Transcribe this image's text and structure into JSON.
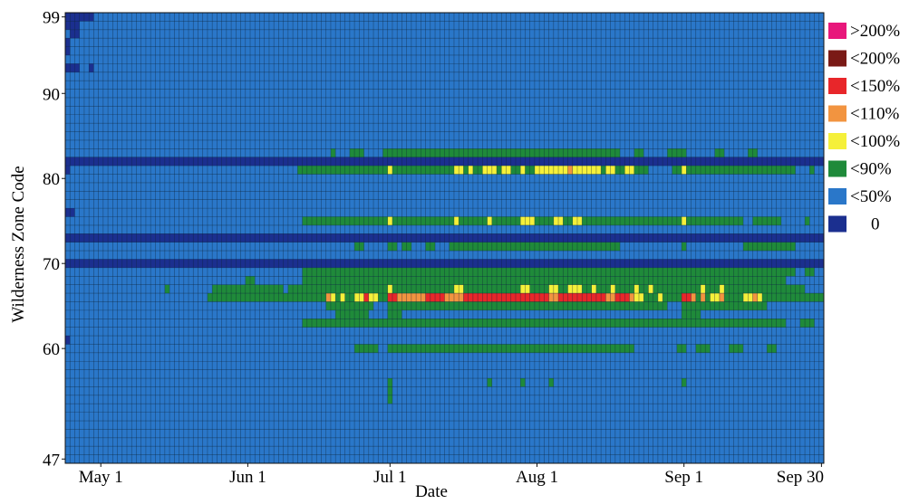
{
  "chart_data": {
    "type": "heatmap",
    "title": "",
    "xlabel": "Date",
    "ylabel": "Wilderness Zone Code",
    "x_start": "Apr 24",
    "x_end": "Oct 1",
    "y_min": 47,
    "y_max": 99,
    "x_ticks": [
      {
        "label": "May 1",
        "date": "May 1"
      },
      {
        "label": "Jun 1",
        "date": "Jun 1"
      },
      {
        "label": "Jul 1",
        "date": "Jul 1"
      },
      {
        "label": "Aug 1",
        "date": "Aug 1"
      },
      {
        "label": "Sep 1",
        "date": "Sep 1"
      },
      {
        "label": "Sep 30",
        "date": "Sep 30"
      }
    ],
    "y_ticks": [
      99,
      90,
      80,
      70,
      60,
      47
    ],
    "legend": {
      "placement": "right",
      "entries": [
        {
          "label": ">200%",
          "color": "#e8177b"
        },
        {
          "label": "<200%",
          "color": "#7a1a16"
        },
        {
          "label": "<150%",
          "color": "#e8262a"
        },
        {
          "label": "<110%",
          "color": "#f29440"
        },
        {
          "label": "<100%",
          "color": "#f5f03a"
        },
        {
          "label": "<90%",
          "color": "#1f8a3a"
        },
        {
          "label": "<50%",
          "color": "#2a77c9"
        },
        {
          "label": "0",
          "color": "#1b2f8f"
        }
      ]
    },
    "background_category": "<50%",
    "zero_rows": [
      {
        "zone": 82,
        "from": "Apr 24",
        "to": "Oct 1"
      },
      {
        "zone": 73,
        "from": "Apr 24",
        "to": "Oct 1"
      },
      {
        "zone": 70,
        "from": "Apr 24",
        "to": "Oct 1"
      }
    ],
    "runs": [
      {
        "zone": 99,
        "from": "Apr 24",
        "to": "Apr 29",
        "cat": "0"
      },
      {
        "zone": 98,
        "from": "Apr 24",
        "to": "Apr 26",
        "cat": "0"
      },
      {
        "zone": 97,
        "from": "Apr 25",
        "to": "Apr 26",
        "cat": "0"
      },
      {
        "zone": 96,
        "from": "Apr 24",
        "to": "Apr 24",
        "cat": "0"
      },
      {
        "zone": 95,
        "from": "Apr 24",
        "to": "Apr 24",
        "cat": "0"
      },
      {
        "zone": 93,
        "from": "Apr 24",
        "to": "Apr 26",
        "cat": "0"
      },
      {
        "zone": 93,
        "from": "Apr 29",
        "to": "Apr 29",
        "cat": "0"
      },
      {
        "zone": 81,
        "from": "Apr 24",
        "to": "Apr 24",
        "cat": "0"
      },
      {
        "zone": 76,
        "from": "Apr 24",
        "to": "Apr 25",
        "cat": "0"
      },
      {
        "zone": 61,
        "from": "Apr 24",
        "to": "Apr 24",
        "cat": "0"
      },
      {
        "zone": 83,
        "from": "Jun 30",
        "to": "Aug 18",
        "cat": "<90%"
      },
      {
        "zone": 83,
        "from": "Jun 23",
        "to": "Jun 25",
        "cat": "<90%"
      },
      {
        "zone": 83,
        "from": "Jun 19",
        "to": "Jun 19",
        "cat": "<90%"
      },
      {
        "zone": 83,
        "from": "Aug 22",
        "to": "Aug 23",
        "cat": "<90%"
      },
      {
        "zone": 83,
        "from": "Aug 29",
        "to": "Sep 1",
        "cat": "<90%"
      },
      {
        "zone": 83,
        "from": "Sep 8",
        "to": "Sep 9",
        "cat": "<90%"
      },
      {
        "zone": 83,
        "from": "Sep 15",
        "to": "Sep 16",
        "cat": "<90%"
      },
      {
        "zone": 81,
        "from": "Jun 12",
        "to": "Aug 24",
        "cat": "<90%"
      },
      {
        "zone": 81,
        "from": "Aug 30",
        "to": "Sep 24",
        "cat": "<90%"
      },
      {
        "zone": 81,
        "from": "Sep 28",
        "to": "Sep 28",
        "cat": "<90%"
      },
      {
        "zone": 81,
        "from": "Jul 1",
        "to": "Jul 1",
        "cat": "<100%"
      },
      {
        "zone": 81,
        "from": "Jul 15",
        "to": "Jul 16",
        "cat": "<100%"
      },
      {
        "zone": 81,
        "from": "Jul 18",
        "to": "Jul 18",
        "cat": "<100%"
      },
      {
        "zone": 81,
        "from": "Jul 21",
        "to": "Jul 23",
        "cat": "<100%"
      },
      {
        "zone": 81,
        "from": "Jul 25",
        "to": "Jul 26",
        "cat": "<100%"
      },
      {
        "zone": 81,
        "from": "Jul 29",
        "to": "Jul 29",
        "cat": "<100%"
      },
      {
        "zone": 81,
        "from": "Aug 1",
        "to": "Aug 7",
        "cat": "<100%"
      },
      {
        "zone": 81,
        "from": "Aug 8",
        "to": "Aug 8",
        "cat": "<110%"
      },
      {
        "zone": 81,
        "from": "Aug 9",
        "to": "Aug 14",
        "cat": "<100%"
      },
      {
        "zone": 81,
        "from": "Aug 16",
        "to": "Aug 17",
        "cat": "<100%"
      },
      {
        "zone": 81,
        "from": "Aug 20",
        "to": "Aug 21",
        "cat": "<100%"
      },
      {
        "zone": 81,
        "from": "Sep 1",
        "to": "Sep 1",
        "cat": "<100%"
      },
      {
        "zone": 75,
        "from": "Jun 13",
        "to": "Aug 31",
        "cat": "<90%"
      },
      {
        "zone": 75,
        "from": "Sep 1",
        "to": "Sep 1",
        "cat": "<100%"
      },
      {
        "zone": 75,
        "from": "Sep 2",
        "to": "Sep 13",
        "cat": "<90%"
      },
      {
        "zone": 75,
        "from": "Sep 16",
        "to": "Sep 21",
        "cat": "<90%"
      },
      {
        "zone": 75,
        "from": "Sep 27",
        "to": "Sep 27",
        "cat": "<90%"
      },
      {
        "zone": 75,
        "from": "Jul 1",
        "to": "Jul 1",
        "cat": "<100%"
      },
      {
        "zone": 75,
        "from": "Jul 15",
        "to": "Jul 15",
        "cat": "<100%"
      },
      {
        "zone": 75,
        "from": "Jul 22",
        "to": "Jul 22",
        "cat": "<100%"
      },
      {
        "zone": 75,
        "from": "Jul 29",
        "to": "Jul 31",
        "cat": "<100%"
      },
      {
        "zone": 75,
        "from": "Aug 5",
        "to": "Aug 6",
        "cat": "<100%"
      },
      {
        "zone": 75,
        "from": "Aug 9",
        "to": "Aug 10",
        "cat": "<100%"
      },
      {
        "zone": 72,
        "from": "Jun 24",
        "to": "Jun 25",
        "cat": "<90%"
      },
      {
        "zone": 72,
        "from": "Jul 1",
        "to": "Jul 2",
        "cat": "<90%"
      },
      {
        "zone": 72,
        "from": "Jul 4",
        "to": "Jul 5",
        "cat": "<90%"
      },
      {
        "zone": 72,
        "from": "Jul 9",
        "to": "Jul 10",
        "cat": "<90%"
      },
      {
        "zone": 72,
        "from": "Jul 14",
        "to": "Aug 18",
        "cat": "<90%"
      },
      {
        "zone": 72,
        "from": "Sep 1",
        "to": "Sep 1",
        "cat": "<90%"
      },
      {
        "zone": 72,
        "from": "Sep 14",
        "to": "Sep 24",
        "cat": "<90%"
      },
      {
        "zone": 69,
        "from": "Jun 13",
        "to": "Aug 31",
        "cat": "<90%"
      },
      {
        "zone": 69,
        "from": "Sep 1",
        "to": "Sep 24",
        "cat": "<90%"
      },
      {
        "zone": 69,
        "from": "Sep 27",
        "to": "Sep 28",
        "cat": "<90%"
      },
      {
        "zone": 68,
        "from": "Jun 13",
        "to": "Sep 22",
        "cat": "<90%"
      },
      {
        "zone": 68,
        "from": "Jun 1",
        "to": "Jun 2",
        "cat": "<90%"
      },
      {
        "zone": 67,
        "from": "May 25",
        "to": "Jun 8",
        "cat": "<90%"
      },
      {
        "zone": 67,
        "from": "May 15",
        "to": "May 15",
        "cat": "<90%"
      },
      {
        "zone": 67,
        "from": "Jun 10",
        "to": "Sep 26",
        "cat": "<90%"
      },
      {
        "zone": 67,
        "from": "Jul 1",
        "to": "Jul 1",
        "cat": "<100%"
      },
      {
        "zone": 67,
        "from": "Jul 15",
        "to": "Jul 16",
        "cat": "<100%"
      },
      {
        "zone": 67,
        "from": "Jul 29",
        "to": "Jul 30",
        "cat": "<100%"
      },
      {
        "zone": 67,
        "from": "Aug 4",
        "to": "Aug 5",
        "cat": "<100%"
      },
      {
        "zone": 67,
        "from": "Aug 8",
        "to": "Aug 10",
        "cat": "<100%"
      },
      {
        "zone": 67,
        "from": "Aug 13",
        "to": "Aug 13",
        "cat": "<100%"
      },
      {
        "zone": 67,
        "from": "Aug 17",
        "to": "Aug 17",
        "cat": "<100%"
      },
      {
        "zone": 67,
        "from": "Aug 22",
        "to": "Aug 22",
        "cat": "<100%"
      },
      {
        "zone": 67,
        "from": "Aug 25",
        "to": "Aug 25",
        "cat": "<100%"
      },
      {
        "zone": 67,
        "from": "Sep 5",
        "to": "Sep 5",
        "cat": "<100%"
      },
      {
        "zone": 67,
        "from": "Sep 9",
        "to": "Sep 9",
        "cat": "<100%"
      },
      {
        "zone": 66,
        "from": "May 24",
        "to": "Sep 30",
        "cat": "<90%"
      },
      {
        "zone": 66,
        "from": "Jun 18",
        "to": "Jun 18",
        "cat": "<110%"
      },
      {
        "zone": 66,
        "from": "Jun 19",
        "to": "Jun 19",
        "cat": "<100%"
      },
      {
        "zone": 66,
        "from": "Jun 21",
        "to": "Jun 21",
        "cat": "<100%"
      },
      {
        "zone": 66,
        "from": "Jun 24",
        "to": "Jun 25",
        "cat": "<100%"
      },
      {
        "zone": 66,
        "from": "Jun 26",
        "to": "Jun 26",
        "cat": "<150%"
      },
      {
        "zone": 66,
        "from": "Jun 27",
        "to": "Jun 28",
        "cat": "<100%"
      },
      {
        "zone": 66,
        "from": "Jul 1",
        "to": "Jul 2",
        "cat": "<150%"
      },
      {
        "zone": 66,
        "from": "Jul 3",
        "to": "Jul 8",
        "cat": "<110%"
      },
      {
        "zone": 66,
        "from": "Jul 9",
        "to": "Jul 12",
        "cat": "<150%"
      },
      {
        "zone": 66,
        "from": "Jul 13",
        "to": "Jul 16",
        "cat": "<110%"
      },
      {
        "zone": 66,
        "from": "Jul 17",
        "to": "Aug 15",
        "cat": "<150%"
      },
      {
        "zone": 66,
        "from": "Aug 4",
        "to": "Aug 5",
        "cat": "<110%"
      },
      {
        "zone": 66,
        "from": "Aug 16",
        "to": "Aug 17",
        "cat": "<110%"
      },
      {
        "zone": 66,
        "from": "Aug 18",
        "to": "Aug 20",
        "cat": "<150%"
      },
      {
        "zone": 66,
        "from": "Aug 21",
        "to": "Aug 21",
        "cat": "<110%"
      },
      {
        "zone": 66,
        "from": "Aug 22",
        "to": "Aug 23",
        "cat": "<100%"
      },
      {
        "zone": 66,
        "from": "Aug 27",
        "to": "Aug 27",
        "cat": "<100%"
      },
      {
        "zone": 66,
        "from": "Sep 1",
        "to": "Sep 2",
        "cat": "<150%"
      },
      {
        "zone": 66,
        "from": "Sep 3",
        "to": "Sep 3",
        "cat": "<110%"
      },
      {
        "zone": 66,
        "from": "Sep 5",
        "to": "Sep 5",
        "cat": "<110%"
      },
      {
        "zone": 66,
        "from": "Sep 7",
        "to": "Sep 8",
        "cat": "<100%"
      },
      {
        "zone": 66,
        "from": "Sep 9",
        "to": "Sep 9",
        "cat": "<110%"
      },
      {
        "zone": 66,
        "from": "Sep 14",
        "to": "Sep 15",
        "cat": "<100%"
      },
      {
        "zone": 66,
        "from": "Sep 16",
        "to": "Sep 16",
        "cat": "<110%"
      },
      {
        "zone": 66,
        "from": "Sep 17",
        "to": "Sep 17",
        "cat": "<100%"
      },
      {
        "zone": 65,
        "from": "Jun 18",
        "to": "Jun 27",
        "cat": "<90%"
      },
      {
        "zone": 65,
        "from": "Jul 1",
        "to": "Aug 28",
        "cat": "<90%"
      },
      {
        "zone": 65,
        "from": "Sep 1",
        "to": "Sep 18",
        "cat": "<90%"
      },
      {
        "zone": 64,
        "from": "Jun 20",
        "to": "Jun 26",
        "cat": "<90%"
      },
      {
        "zone": 64,
        "from": "Jul 1",
        "to": "Jul 3",
        "cat": "<90%"
      },
      {
        "zone": 64,
        "from": "Sep 1",
        "to": "Sep 4",
        "cat": "<90%"
      },
      {
        "zone": 63,
        "from": "Jun 13",
        "to": "Sep 22",
        "cat": "<90%"
      },
      {
        "zone": 63,
        "from": "Sep 26",
        "to": "Sep 28",
        "cat": "<90%"
      },
      {
        "zone": 60,
        "from": "Jun 24",
        "to": "Jun 28",
        "cat": "<90%"
      },
      {
        "zone": 60,
        "from": "Jul 1",
        "to": "Aug 21",
        "cat": "<90%"
      },
      {
        "zone": 60,
        "from": "Aug 31",
        "to": "Sep 1",
        "cat": "<90%"
      },
      {
        "zone": 60,
        "from": "Sep 4",
        "to": "Sep 6",
        "cat": "<90%"
      },
      {
        "zone": 60,
        "from": "Sep 11",
        "to": "Sep 13",
        "cat": "<90%"
      },
      {
        "zone": 60,
        "from": "Sep 19",
        "to": "Sep 20",
        "cat": "<90%"
      },
      {
        "zone": 56,
        "from": "Jul 1",
        "to": "Jul 1",
        "cat": "<90%"
      },
      {
        "zone": 56,
        "from": "Jul 22",
        "to": "Jul 22",
        "cat": "<90%"
      },
      {
        "zone": 56,
        "from": "Jul 29",
        "to": "Jul 29",
        "cat": "<90%"
      },
      {
        "zone": 56,
        "from": "Aug 4",
        "to": "Aug 4",
        "cat": "<90%"
      },
      {
        "zone": 56,
        "from": "Sep 1",
        "to": "Sep 1",
        "cat": "<90%"
      },
      {
        "zone": 55,
        "from": "Jul 1",
        "to": "Jul 1",
        "cat": "<90%"
      },
      {
        "zone": 54,
        "from": "Jul 1",
        "to": "Jul 1",
        "cat": "<90%"
      }
    ]
  }
}
